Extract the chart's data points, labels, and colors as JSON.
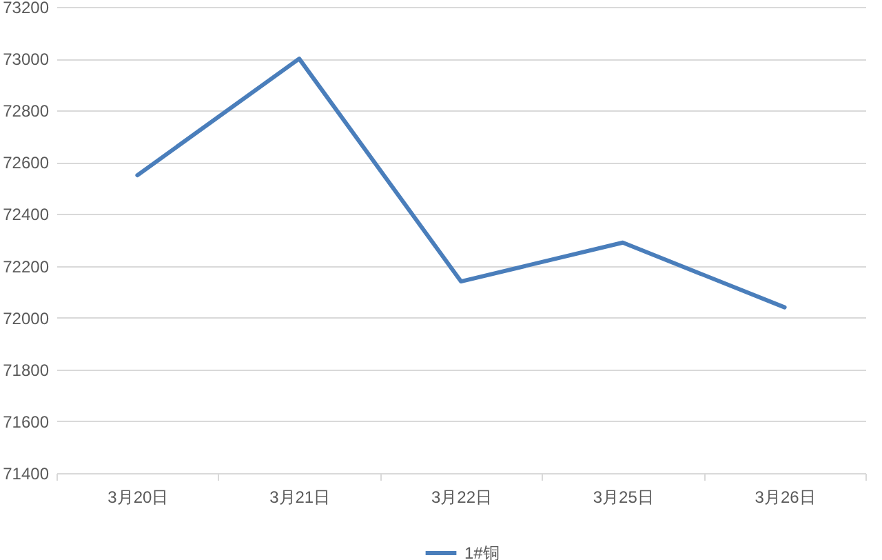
{
  "chart_data": {
    "type": "line",
    "categories": [
      "3月20日",
      "3月21日",
      "3月22日",
      "3月25日",
      "3月26日"
    ],
    "series": [
      {
        "name": "1#铜",
        "color": "#4a7ebb",
        "values": [
          72550,
          73000,
          72140,
          72290,
          72040
        ]
      }
    ],
    "ylim": [
      71400,
      73200
    ],
    "yticks": [
      71400,
      71600,
      71800,
      72000,
      72200,
      72400,
      72600,
      72800,
      73000,
      73200
    ],
    "grid": "y",
    "legend": "bottom",
    "marker": "none",
    "line_style": "solid"
  }
}
